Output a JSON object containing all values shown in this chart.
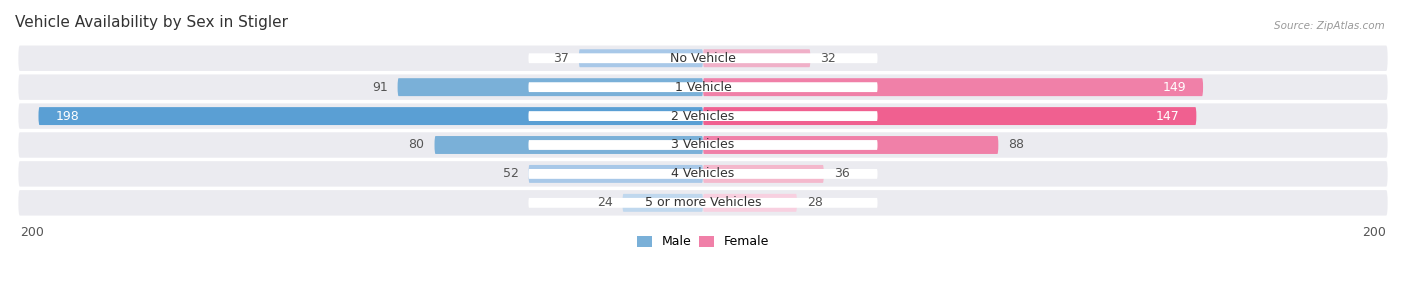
{
  "title": "Vehicle Availability by Sex in Stigler",
  "source": "Source: ZipAtlas.com",
  "categories": [
    "No Vehicle",
    "1 Vehicle",
    "2 Vehicles",
    "3 Vehicles",
    "4 Vehicles",
    "5 or more Vehicles"
  ],
  "male_values": [
    37,
    91,
    198,
    80,
    52,
    24
  ],
  "female_values": [
    32,
    149,
    147,
    88,
    36,
    28
  ],
  "male_colors": [
    "#a8c8e8",
    "#7ab0d8",
    "#5a9fd4",
    "#7ab0d8",
    "#a8c8e8",
    "#c0d8ee"
  ],
  "female_colors": [
    "#f0b0c8",
    "#f080a8",
    "#f06090",
    "#f080a8",
    "#f4b8cc",
    "#f8d0e0"
  ],
  "row_bg_color": "#ebebf0",
  "row_bg_even": "#ebebf0",
  "xlim": 200,
  "legend_male_label": "Male",
  "legend_female_label": "Female",
  "title_fontsize": 11,
  "label_fontsize": 9,
  "axis_label_fontsize": 9,
  "category_fontsize": 9
}
